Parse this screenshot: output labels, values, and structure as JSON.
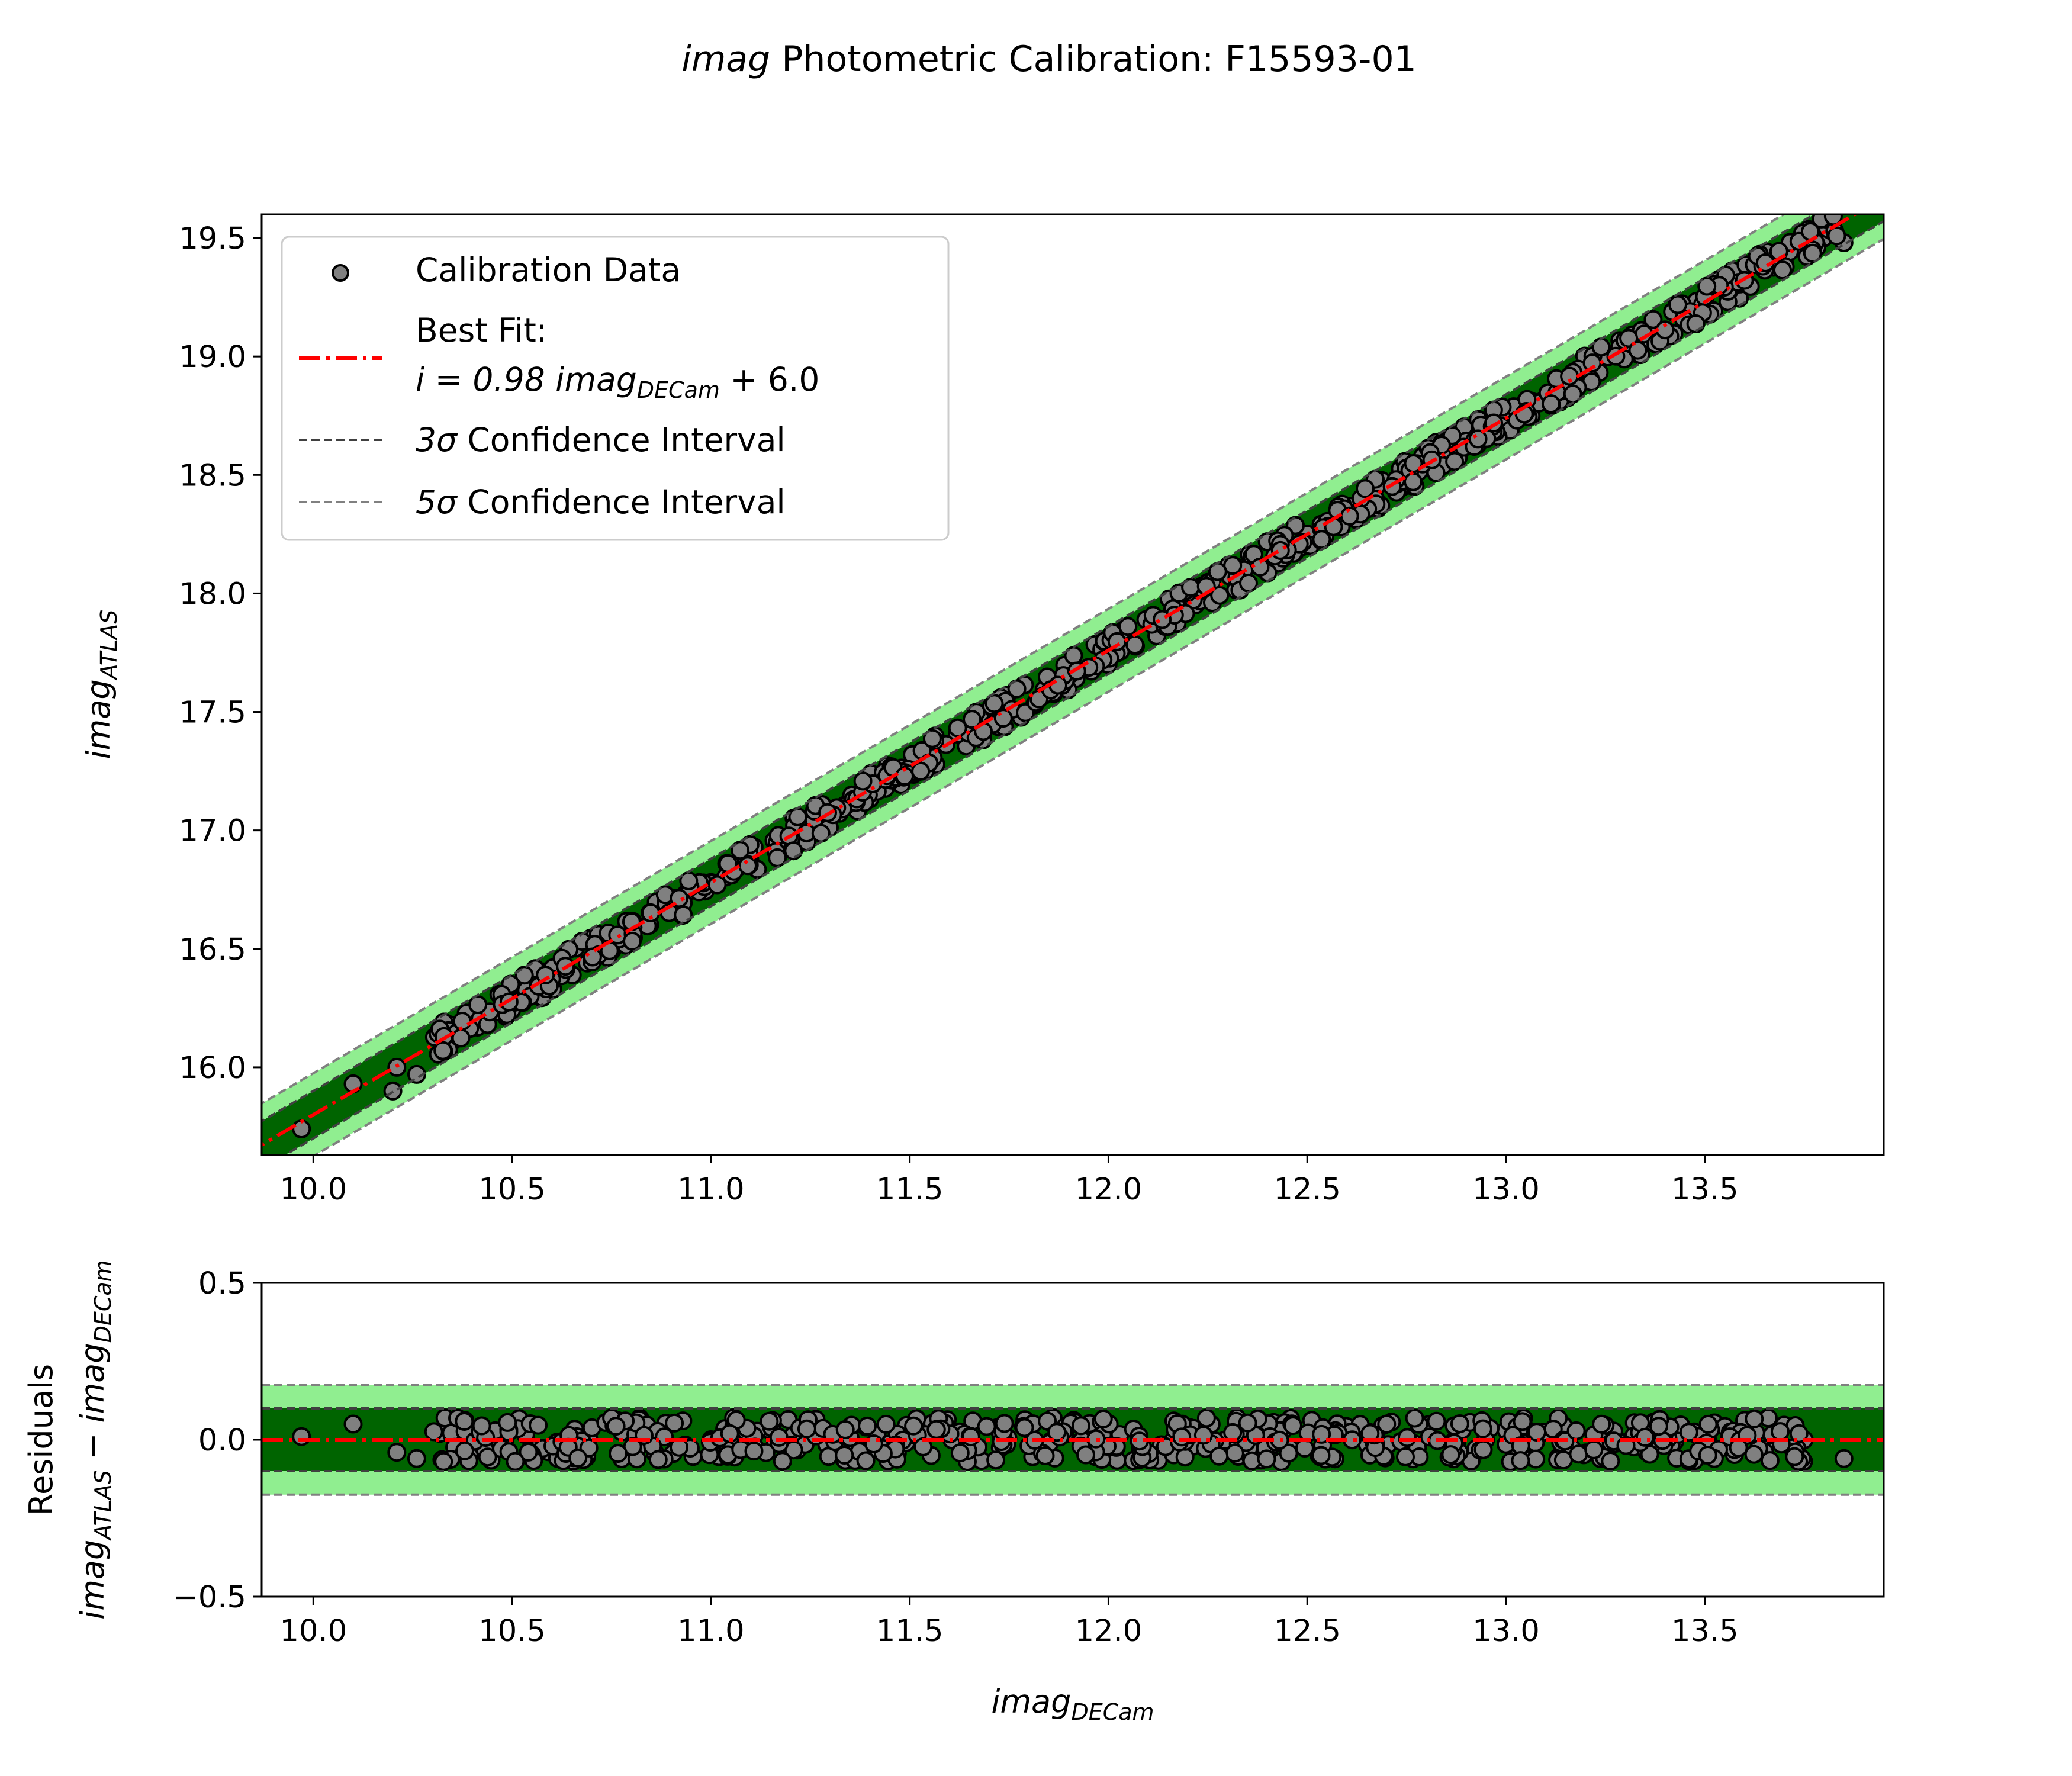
{
  "figure": {
    "title_italic": "imag",
    "title_rest": " Photometric Calibration: F15593-01"
  },
  "legend": {
    "data_label": "Calibration Data",
    "fit_label_line1": "Best Fit:",
    "fit_label_line2_prefix": "i = 0.98 ",
    "fit_label_line2_var": "imag",
    "fit_label_line2_sub": "DECam",
    "fit_label_line2_suffix": " + 6.0",
    "ci3_sigma": "3σ",
    "ci3_text": " Confidence Interval",
    "ci5_sigma": "5σ",
    "ci5_text": " Confidence Interval"
  },
  "labels": {
    "top_ylabel_var": "imag",
    "top_ylabel_sub": "ATLAS",
    "bottom_ylabel_line1": "Residuals",
    "bottom_ylabel_var1": "imag",
    "bottom_ylabel_sub1": "ATLAS",
    "bottom_ylabel_minus": " − ",
    "bottom_ylabel_var2": "imag",
    "bottom_ylabel_sub2": "DECam",
    "xlabel_var": "imag",
    "xlabel_sub": "DECam"
  },
  "colors": {
    "fit_line": "#ff0000",
    "band_3sigma": "#006400",
    "band_5sigma": "#90ee90",
    "ci3_line": "#404040",
    "ci5_line": "#808080",
    "marker_fill": "#808080",
    "marker_edge": "#000000"
  },
  "chart_data": [
    {
      "panel": "main",
      "type": "scatter",
      "xlim": [
        9.87,
        13.95
      ],
      "ylim": [
        15.63,
        19.6
      ],
      "xticks": [
        10.0,
        10.5,
        11.0,
        11.5,
        12.0,
        12.5,
        13.0,
        13.5
      ],
      "xtick_labels": [
        "10.0",
        "10.5",
        "11.0",
        "11.5",
        "12.0",
        "12.5",
        "13.0",
        "13.5"
      ],
      "yticks": [
        16.0,
        16.5,
        17.0,
        17.5,
        18.0,
        18.5,
        19.0,
        19.5
      ],
      "ytick_labels": [
        "16.0",
        "16.5",
        "17.0",
        "17.5",
        "18.0",
        "18.5",
        "19.0",
        "19.5"
      ],
      "fit": {
        "slope": 0.98,
        "intercept": 6.0
      },
      "sigma3_halfwidth": 0.1,
      "sigma5_halfwidth": 0.175,
      "n_points_approx": 600,
      "x_range": [
        9.97,
        13.85
      ],
      "sample_points": [
        [
          9.97,
          15.74
        ],
        [
          10.1,
          15.93
        ],
        [
          10.2,
          15.9
        ],
        [
          10.21,
          16.0
        ],
        [
          10.26,
          15.97
        ],
        [
          10.35,
          16.11
        ],
        [
          10.5,
          16.27
        ],
        [
          11.0,
          16.78
        ],
        [
          11.5,
          17.27
        ],
        [
          12.0,
          17.76
        ],
        [
          12.5,
          18.25
        ],
        [
          13.0,
          18.74
        ],
        [
          13.5,
          19.23
        ],
        [
          13.85,
          19.48
        ]
      ],
      "legend_position": "upper left"
    },
    {
      "panel": "residuals",
      "type": "scatter",
      "xlim": [
        9.87,
        13.95
      ],
      "ylim": [
        -0.5,
        0.5
      ],
      "xticks": [
        10.0,
        10.5,
        11.0,
        11.5,
        12.0,
        12.5,
        13.0,
        13.5
      ],
      "xtick_labels": [
        "10.0",
        "10.5",
        "11.0",
        "11.5",
        "12.0",
        "12.5",
        "13.0",
        "13.5"
      ],
      "yticks": [
        -0.5,
        0.0,
        0.5
      ],
      "ytick_labels": [
        "−0.5",
        "0.0",
        "0.5"
      ],
      "zero_line": 0.0,
      "sigma3_halfwidth": 0.1,
      "sigma5_halfwidth": 0.175,
      "residual_range": [
        -0.07,
        0.07
      ],
      "sample_points": [
        [
          9.97,
          0.01
        ],
        [
          10.1,
          0.05
        ],
        [
          10.21,
          -0.04
        ],
        [
          10.26,
          -0.06
        ],
        [
          10.35,
          0.04
        ],
        [
          11.0,
          0.0
        ],
        [
          12.0,
          -0.02
        ],
        [
          13.0,
          0.03
        ],
        [
          13.75,
          0.0
        ],
        [
          13.85,
          -0.06
        ]
      ]
    }
  ]
}
